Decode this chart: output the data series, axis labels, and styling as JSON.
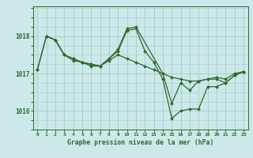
{
  "title": "Graphe pression niveau de la mer (hPa)",
  "bg_color": "#cce8e8",
  "grid_color": "#a8d0d0",
  "line_color": "#2d6a2d",
  "ylim": [
    1015.5,
    1018.8
  ],
  "xlim": [
    -0.5,
    23.5
  ],
  "yticks": [
    1016,
    1017,
    1018
  ],
  "xticks": [
    0,
    1,
    2,
    3,
    4,
    5,
    6,
    7,
    8,
    9,
    10,
    11,
    12,
    13,
    14,
    15,
    16,
    17,
    18,
    19,
    20,
    21,
    22,
    23
  ],
  "series": [
    {
      "x": [
        0,
        1,
        2,
        3,
        4,
        5,
        6,
        7,
        8,
        9,
        10,
        11,
        12,
        13,
        14,
        15,
        16,
        17,
        18,
        19,
        20,
        21,
        22,
        23
      ],
      "y": [
        1017.1,
        1018.0,
        1017.9,
        1017.5,
        1017.4,
        1017.3,
        1017.2,
        1017.2,
        1017.35,
        1017.5,
        1017.4,
        1017.3,
        1017.2,
        1017.1,
        1017.0,
        1016.9,
        1016.85,
        1016.8,
        1016.8,
        1016.85,
        1016.9,
        1016.85,
        1017.0,
        1017.05
      ]
    },
    {
      "x": [
        0,
        1,
        2,
        3,
        4,
        5,
        6,
        7,
        8,
        9,
        10,
        11,
        12,
        13,
        14,
        15,
        16,
        17,
        18,
        19,
        20,
        21,
        22,
        23
      ],
      "y": [
        1017.1,
        1018.0,
        1017.9,
        1017.5,
        1017.4,
        1017.3,
        1017.25,
        1017.2,
        1017.4,
        1017.6,
        1018.15,
        1018.2,
        1017.6,
        1017.3,
        1016.85,
        1015.8,
        1016.0,
        1016.05,
        1016.05,
        1016.65,
        1016.65,
        1016.75,
        1016.95,
        1017.05
      ]
    },
    {
      "x": [
        1,
        2,
        3,
        4,
        5,
        6,
        7,
        8,
        9,
        10,
        11,
        14,
        15,
        16,
        17,
        18,
        19,
        20,
        21,
        22,
        23
      ],
      "y": [
        1018.0,
        1017.9,
        1017.5,
        1017.35,
        1017.3,
        1017.25,
        1017.2,
        1017.4,
        1017.65,
        1018.2,
        1018.25,
        1017.0,
        1016.2,
        1016.75,
        1016.55,
        1016.8,
        1016.85,
        1016.85,
        1016.75,
        1016.95,
        1017.05
      ]
    }
  ]
}
